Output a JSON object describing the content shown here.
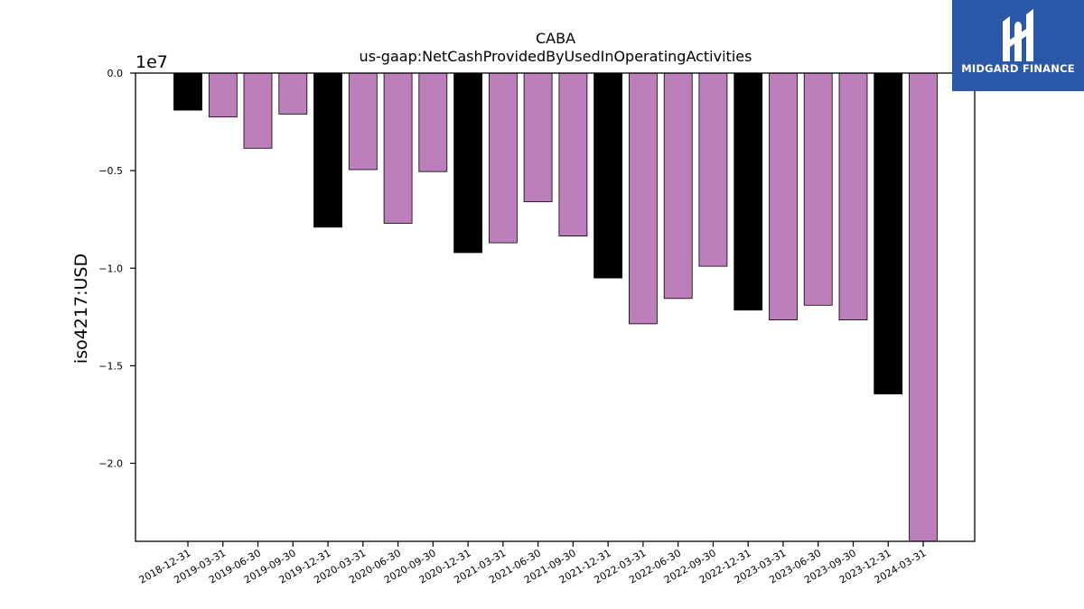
{
  "logo": {
    "text": "MIDGARD FINANCE",
    "bg_color": "#2b58a8"
  },
  "chart_data": {
    "type": "bar",
    "title": "CABA",
    "subtitle": "us-gaap:NetCashProvidedByUsedInOperatingActivities",
    "ylabel": "iso4217:USD",
    "xlabel": "",
    "y_scale_label": "1e7",
    "ylim": [
      -2.4,
      0.0
    ],
    "yticks": [
      0.0,
      -0.5,
      -1.0,
      -1.5,
      -2.0
    ],
    "ytick_labels": [
      "0.0",
      "−0.5",
      "−1.0",
      "−1.5",
      "−2.0"
    ],
    "colors": {
      "annual": "#000000",
      "quarterly": "#bc7fbc"
    },
    "categories": [
      "2018-12-31",
      "2019-03-31",
      "2019-06-30",
      "2019-09-30",
      "2019-12-31",
      "2020-03-31",
      "2020-06-30",
      "2020-09-30",
      "2020-12-31",
      "2021-03-31",
      "2021-06-30",
      "2021-09-30",
      "2021-12-31",
      "2022-03-31",
      "2022-06-30",
      "2022-09-30",
      "2022-12-31",
      "2023-03-31",
      "2023-06-30",
      "2023-09-30",
      "2023-12-31",
      "2024-03-31"
    ],
    "values": [
      -0.19,
      -0.225,
      -0.385,
      -0.21,
      -0.79,
      -0.495,
      -0.77,
      -0.505,
      -0.92,
      -0.87,
      -0.66,
      -0.835,
      -1.05,
      -1.285,
      -1.155,
      -0.99,
      -1.215,
      -1.265,
      -1.19,
      -1.265,
      -1.645,
      -2.4
    ],
    "bar_kind": [
      "annual",
      "quarterly",
      "quarterly",
      "quarterly",
      "annual",
      "quarterly",
      "quarterly",
      "quarterly",
      "annual",
      "quarterly",
      "quarterly",
      "quarterly",
      "annual",
      "quarterly",
      "quarterly",
      "quarterly",
      "annual",
      "quarterly",
      "quarterly",
      "quarterly",
      "annual",
      "quarterly"
    ],
    "grid": false,
    "legend": false
  }
}
